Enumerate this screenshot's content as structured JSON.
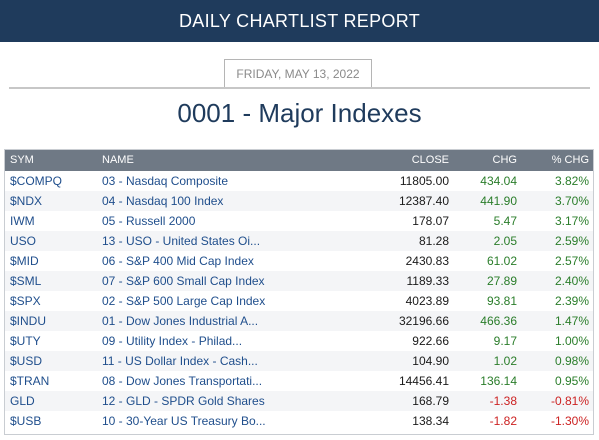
{
  "header": {
    "title": "DAILY CHARTLIST REPORT"
  },
  "report": {
    "date": "FRIDAY, MAY 13, 2022",
    "list_title": "0001 - Major Indexes"
  },
  "table": {
    "columns": [
      "SYM",
      "NAME",
      "CLOSE",
      "CHG",
      "% CHG"
    ],
    "rows": [
      {
        "sym": "$COMPQ",
        "name": "03 - Nasdaq Composite",
        "close": "11805.00",
        "chg": "434.04",
        "pct": "3.82%",
        "dir": "up"
      },
      {
        "sym": "$NDX",
        "name": "04 - Nasdaq 100 Index",
        "close": "12387.40",
        "chg": "441.90",
        "pct": "3.70%",
        "dir": "up"
      },
      {
        "sym": "IWM",
        "name": "05 - Russell 2000",
        "close": "178.07",
        "chg": "5.47",
        "pct": "3.17%",
        "dir": "up"
      },
      {
        "sym": "USO",
        "name": "13 - USO - United States Oi...",
        "close": "81.28",
        "chg": "2.05",
        "pct": "2.59%",
        "dir": "up"
      },
      {
        "sym": "$MID",
        "name": "06 - S&P 400 Mid Cap Index",
        "close": "2430.83",
        "chg": "61.02",
        "pct": "2.57%",
        "dir": "up"
      },
      {
        "sym": "$SML",
        "name": "07 - S&P 600 Small Cap Index",
        "close": "1189.33",
        "chg": "27.89",
        "pct": "2.40%",
        "dir": "up"
      },
      {
        "sym": "$SPX",
        "name": "02 - S&P 500 Large Cap Index",
        "close": "4023.89",
        "chg": "93.81",
        "pct": "2.39%",
        "dir": "up"
      },
      {
        "sym": "$INDU",
        "name": "01 - Dow Jones Industrial A...",
        "close": "32196.66",
        "chg": "466.36",
        "pct": "1.47%",
        "dir": "up"
      },
      {
        "sym": "$UTY",
        "name": "09 - Utility Index - Philad...",
        "close": "922.66",
        "chg": "9.17",
        "pct": "1.00%",
        "dir": "up"
      },
      {
        "sym": "$USD",
        "name": "11 - US Dollar Index - Cash...",
        "close": "104.90",
        "chg": "1.02",
        "pct": "0.98%",
        "dir": "up"
      },
      {
        "sym": "$TRAN",
        "name": "08 - Dow Jones Transportati...",
        "close": "14456.41",
        "chg": "136.14",
        "pct": "0.95%",
        "dir": "up"
      },
      {
        "sym": "GLD",
        "name": "12 - GLD - SPDR Gold Shares",
        "close": "168.79",
        "chg": "-1.38",
        "pct": "-0.81%",
        "dir": "down"
      },
      {
        "sym": "$USB",
        "name": "10 - 30-Year US Treasury Bo...",
        "close": "138.34",
        "chg": "-1.82",
        "pct": "-1.30%",
        "dir": "down"
      }
    ]
  },
  "colors": {
    "header_bg": "#1f3b5c",
    "table_header_bg": "#6f7985",
    "link": "#1f4e8c",
    "positive": "#2a7d2a",
    "negative": "#cc2222"
  }
}
